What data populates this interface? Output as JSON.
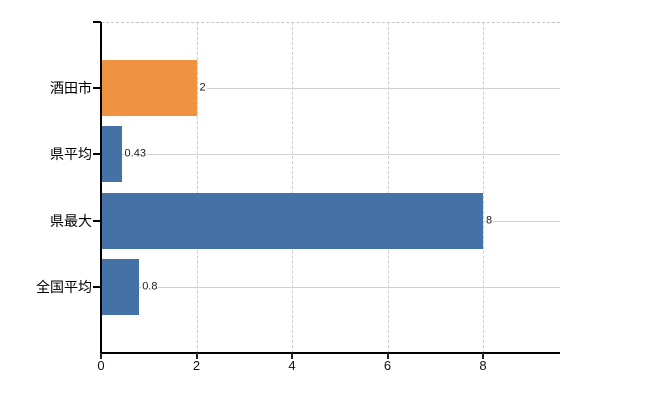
{
  "chart_data": {
    "type": "bar",
    "orientation": "horizontal",
    "categories": [
      "酒田市",
      "県平均",
      "県最大",
      "全国平均"
    ],
    "values": [
      2,
      0.43,
      8,
      0.8
    ],
    "value_labels": [
      "2",
      "0.43",
      "8",
      "0.8"
    ],
    "x_tick_labels": [
      "0",
      "2",
      "4",
      "6",
      "8"
    ],
    "x_tick_values": [
      0,
      2,
      4,
      6,
      8
    ],
    "xlim": [
      0,
      9.6
    ],
    "title": "",
    "xlabel": "",
    "ylabel": "",
    "grid": {
      "horizontal": "solid",
      "vertical": "dashed",
      "top_border": "dashed"
    },
    "legend": "none",
    "colors": {
      "highlight_bar": "#ef9340",
      "default_bar": "#4472a7",
      "bar_colors": [
        "#ef9340",
        "#4472a7",
        "#4472a7",
        "#4472a7"
      ],
      "grid_line": "#ced3ce",
      "vertical_grid_line": "#cccccc",
      "axis_line": "#000000",
      "top_border_line": "#c6c6ca",
      "text": "#000000",
      "value_text": "#1a1a1a",
      "background": "#ffffff"
    }
  }
}
